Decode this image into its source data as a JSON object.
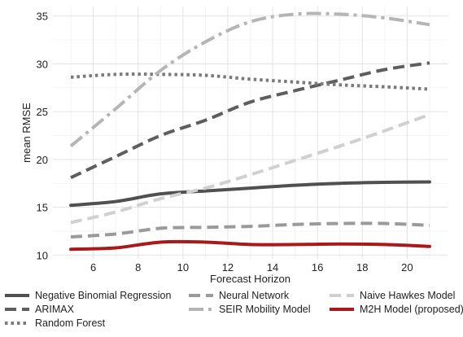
{
  "chart_data": {
    "type": "line",
    "xlabel": "Forecast Horizon",
    "ylabel": "mean RMSE",
    "xlim": [
      4.2,
      21.8
    ],
    "ylim": [
      9.6,
      36.0
    ],
    "xticks": [
      6,
      8,
      10,
      12,
      14,
      16,
      18,
      20
    ],
    "yticks": [
      10,
      15,
      20,
      25,
      30,
      35
    ],
    "grid": true,
    "legend_position": "bottom",
    "series": [
      {
        "name": "Negative Binomial Regression",
        "color": "#505050",
        "dash": "solid",
        "x": [
          5,
          7,
          9,
          11,
          13,
          15,
          17,
          19,
          21
        ],
        "y": [
          15.2,
          15.6,
          16.4,
          16.7,
          17.0,
          17.3,
          17.5,
          17.6,
          17.65
        ]
      },
      {
        "name": "ARIMAX",
        "color": "#5e5e5e",
        "dash": "dash",
        "x": [
          5,
          7,
          9,
          11,
          13,
          15,
          17,
          19,
          21
        ],
        "y": [
          18.1,
          20.3,
          22.5,
          24.1,
          26.0,
          27.2,
          28.3,
          29.4,
          30.1
        ]
      },
      {
        "name": "Random Forest",
        "color": "#7a7a7a",
        "dash": "dot",
        "x": [
          5,
          7,
          9,
          11,
          13,
          15,
          17,
          19,
          21
        ],
        "y": [
          28.6,
          28.9,
          28.9,
          28.8,
          28.4,
          28.1,
          27.8,
          27.6,
          27.35
        ]
      },
      {
        "name": "Neural Network",
        "color": "#9a9a9a",
        "dash": "dash",
        "x": [
          5,
          7,
          9,
          11,
          13,
          15,
          17,
          19,
          21
        ],
        "y": [
          11.9,
          12.2,
          12.8,
          12.9,
          13.0,
          13.2,
          13.3,
          13.3,
          13.1
        ]
      },
      {
        "name": "SEIR Mobility Model",
        "color": "#b5b5b5",
        "dash": "dashdot",
        "x": [
          5,
          7,
          9,
          11,
          13,
          15,
          17,
          19,
          21
        ],
        "y": [
          21.4,
          25.3,
          29.3,
          32.3,
          34.4,
          35.2,
          35.2,
          34.8,
          34.1
        ]
      },
      {
        "name": "Naive Hawkes Model",
        "color": "#d0d0d0",
        "dash": "dash",
        "x": [
          5,
          7,
          9,
          11,
          13,
          15,
          17,
          19,
          21
        ],
        "y": [
          13.4,
          14.5,
          15.9,
          17.0,
          18.4,
          19.9,
          21.4,
          23.0,
          24.7
        ]
      },
      {
        "name": "M2H Model (proposed)",
        "color": "#a81a1a",
        "dash": "solid",
        "x": [
          5,
          7,
          9,
          11,
          13,
          15,
          17,
          19,
          21
        ],
        "y": [
          10.6,
          10.75,
          11.35,
          11.35,
          11.1,
          11.1,
          11.15,
          11.1,
          10.9
        ]
      }
    ]
  },
  "legend": {
    "rows": [
      [
        "Negative Binomial Regression",
        "Neural Network",
        "Naive Hawkes Model"
      ],
      [
        "ARIMAX",
        "SEIR Mobility Model",
        "M2H Model (proposed)"
      ],
      [
        "Random Forest"
      ]
    ]
  }
}
